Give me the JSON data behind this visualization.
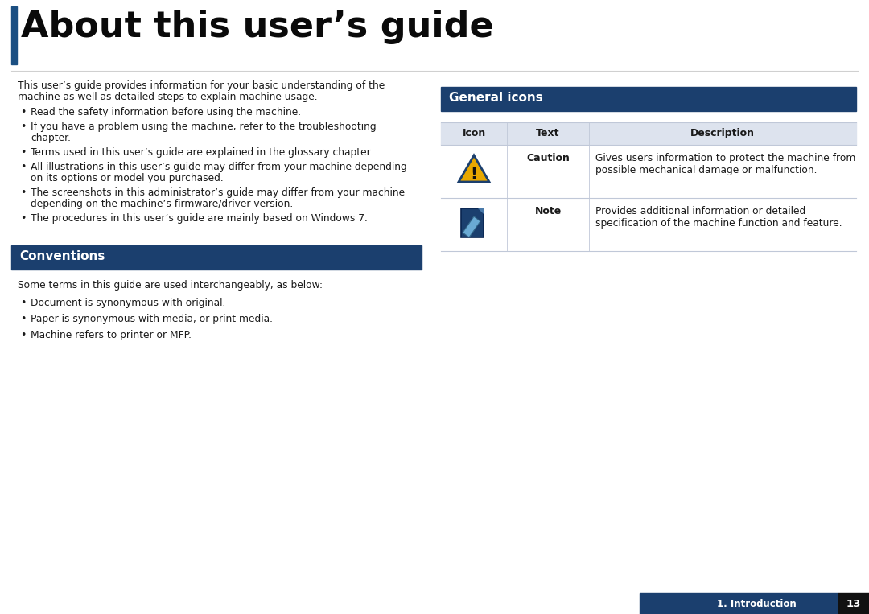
{
  "title": "About this user’s guide",
  "title_blue_bar_color": "#1b4f82",
  "section_header_bg": "#1b3f6e",
  "section_header_text_color": "#ffffff",
  "body_text_color": "#1a1a1a",
  "background_color": "#ffffff",
  "intro_text1": "This user’s guide provides information for your basic understanding of the",
  "intro_text2": "machine as well as detailed steps to explain machine usage.",
  "bullet_points_left": [
    "Read the safety information before using the machine.",
    "If you have a problem using the machine, refer to the troubleshooting\nchapter.",
    "Terms used in this user’s guide are explained in the glossary chapter.",
    "All illustrations in this user’s guide may differ from your machine depending\non its options or model you purchased.",
    "The screenshots in this administrator’s guide may differ from your machine\ndepending on the machine’s firmware/driver version.",
    "The procedures in this user’s guide are mainly based on Windows 7."
  ],
  "conventions_header": "Conventions",
  "conventions_intro": "Some terms in this guide are used interchangeably, as below:",
  "conventions_bullets": [
    "Document is synonymous with original.",
    "Paper is synonymous with media, or print media.",
    "Machine refers to printer or MFP."
  ],
  "general_icons_header": "General icons",
  "table_header": [
    "Icon",
    "Text",
    "Description"
  ],
  "table_row1_text": "Caution",
  "table_row1_desc": "Gives users information to protect the machine from\npossible mechanical damage or malfunction.",
  "table_row2_text": "Note",
  "table_row2_desc": "Provides additional information or detailed\nspecification of the machine function and feature.",
  "footer_text": "1. Introduction",
  "footer_page": "13",
  "footer_bg": "#1b3f6e",
  "line_color": "#c0c8d8",
  "table_hdr_bg": "#dde3ee"
}
